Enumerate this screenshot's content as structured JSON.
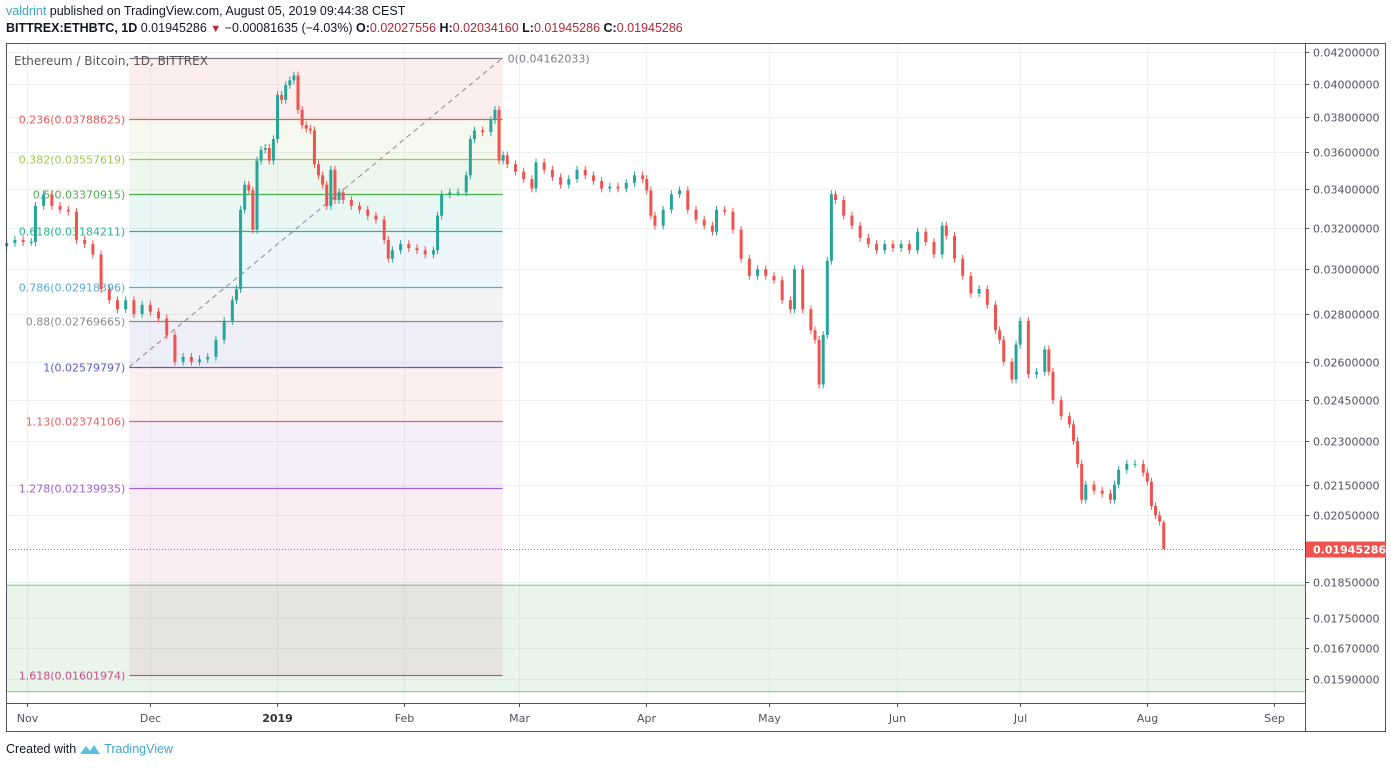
{
  "header": {
    "author": "valdrint",
    "published": "published on TradingView.com, August 05, 2019 09:44:38 CEST",
    "symbol": "BITTREX:ETHBTC, 1D",
    "last": "0.01945286",
    "change": "−0.00081635 (−4.03%)",
    "direction_icon": "triangle-down-icon",
    "o_label": "O:",
    "o": "0.02027556",
    "h_label": "H:",
    "h": "0.02034160",
    "l_label": "L:",
    "l": "0.01945286",
    "c_label": "C:",
    "c": "0.01945286"
  },
  "footer": {
    "created_with": "Created with",
    "brand": "TradingView",
    "logo_icon": "tradingview-logo-icon"
  },
  "colors": {
    "up": "#26a69a",
    "down": "#ef5350",
    "brand": "#3ea6c8",
    "last_price": "#ef5350",
    "zone": "#4caf50"
  },
  "chart_data": {
    "type": "candlestick",
    "title": "Ethereum / Bitcoin, 1D, BITTREX",
    "y_scale": "log",
    "ylim": [
      0.01535,
      0.0424
    ],
    "grid": true,
    "y_ticks": [
      "0.04200000",
      "0.04000000",
      "0.03800000",
      "0.03600000",
      "0.03400000",
      "0.03200000",
      "0.03000000",
      "0.02800000",
      "0.02600000",
      "0.02450000",
      "0.02300000",
      "0.02150000",
      "0.02050000",
      "0.01850000",
      "0.01750000",
      "0.01670000",
      "0.01590000"
    ],
    "x_ticks": [
      {
        "label": "Nov",
        "date": "2018-11-01"
      },
      {
        "label": "Dec",
        "date": "2018-12-01"
      },
      {
        "label": "2019",
        "date": "2019-01-01",
        "bold": true
      },
      {
        "label": "Feb",
        "date": "2019-02-01"
      },
      {
        "label": "Mar",
        "date": "2019-03-01"
      },
      {
        "label": "Apr",
        "date": "2019-04-01"
      },
      {
        "label": "May",
        "date": "2019-05-01"
      },
      {
        "label": "Jun",
        "date": "2019-06-01"
      },
      {
        "label": "Jul",
        "date": "2019-07-01"
      },
      {
        "label": "Aug",
        "date": "2019-08-01"
      },
      {
        "label": "Sep",
        "date": "2019-09-01"
      }
    ],
    "last_price": {
      "value": 0.01945286,
      "label": "0.01945286"
    },
    "last_candle": {
      "date": "2019-08-05",
      "open": 0.02027556,
      "high": 0.0203416,
      "low": 0.01945286,
      "close": 0.01945286
    },
    "closes": [
      [
        "2018-10-27",
        0.03125
      ],
      [
        "2018-10-29",
        0.0314
      ],
      [
        "2018-10-31",
        0.0313
      ],
      [
        "2018-11-02",
        0.0313
      ],
      [
        "2018-11-03",
        0.0331
      ],
      [
        "2018-11-05",
        0.0337
      ],
      [
        "2018-11-07",
        0.0331
      ],
      [
        "2018-11-09",
        0.0329
      ],
      [
        "2018-11-11",
        0.0328
      ],
      [
        "2018-11-13",
        0.0314
      ],
      [
        "2018-11-15",
        0.0312
      ],
      [
        "2018-11-17",
        0.0307
      ],
      [
        "2018-11-19",
        0.0291
      ],
      [
        "2018-11-21",
        0.0286
      ],
      [
        "2018-11-23",
        0.0282
      ],
      [
        "2018-11-25",
        0.0286
      ],
      [
        "2018-11-27",
        0.028
      ],
      [
        "2018-11-29",
        0.0284
      ],
      [
        "2018-12-01",
        0.0281
      ],
      [
        "2018-12-03",
        0.0278
      ],
      [
        "2018-12-05",
        0.0271
      ],
      [
        "2018-12-07",
        0.026
      ],
      [
        "2018-12-09",
        0.0262
      ],
      [
        "2018-12-11",
        0.026
      ],
      [
        "2018-12-13",
        0.0261
      ],
      [
        "2018-12-15",
        0.0262
      ],
      [
        "2018-12-17",
        0.0269
      ],
      [
        "2018-12-19",
        0.0277
      ],
      [
        "2018-12-21",
        0.0286
      ],
      [
        "2018-12-22",
        0.0291
      ],
      [
        "2018-12-23",
        0.0329
      ],
      [
        "2018-12-24",
        0.0342
      ],
      [
        "2018-12-25",
        0.0339
      ],
      [
        "2018-12-26",
        0.0319
      ],
      [
        "2018-12-27",
        0.0355
      ],
      [
        "2018-12-28",
        0.0361
      ],
      [
        "2018-12-29",
        0.0362
      ],
      [
        "2018-12-30",
        0.0355
      ],
      [
        "2018-12-31",
        0.0367
      ],
      [
        "2019-01-01",
        0.0393
      ],
      [
        "2019-01-02",
        0.039
      ],
      [
        "2019-01-03",
        0.0399
      ],
      [
        "2019-01-04",
        0.0402
      ],
      [
        "2019-01-05",
        0.0405
      ],
      [
        "2019-01-06",
        0.0384
      ],
      [
        "2019-01-07",
        0.0375
      ],
      [
        "2019-01-08",
        0.0373
      ],
      [
        "2019-01-09",
        0.0372
      ],
      [
        "2019-01-10",
        0.0353
      ],
      [
        "2019-01-11",
        0.0347
      ],
      [
        "2019-01-12",
        0.0342
      ],
      [
        "2019-01-13",
        0.0331
      ],
      [
        "2019-01-14",
        0.035
      ],
      [
        "2019-01-15",
        0.0334
      ],
      [
        "2019-01-16",
        0.0338
      ],
      [
        "2019-01-17",
        0.0334
      ],
      [
        "2019-01-19",
        0.0331
      ],
      [
        "2019-01-21",
        0.0329
      ],
      [
        "2019-01-23",
        0.0326
      ],
      [
        "2019-01-25",
        0.0324
      ],
      [
        "2019-01-27",
        0.0314
      ],
      [
        "2019-01-28",
        0.0305
      ],
      [
        "2019-01-29",
        0.0309
      ],
      [
        "2019-01-31",
        0.0312
      ],
      [
        "2019-02-02",
        0.031
      ],
      [
        "2019-02-04",
        0.0309
      ],
      [
        "2019-02-06",
        0.0307
      ],
      [
        "2019-02-08",
        0.0309
      ],
      [
        "2019-02-09",
        0.0326
      ],
      [
        "2019-02-10",
        0.0337
      ],
      [
        "2019-02-12",
        0.0338
      ],
      [
        "2019-02-14",
        0.0338
      ],
      [
        "2019-02-16",
        0.0347
      ],
      [
        "2019-02-17",
        0.0367
      ],
      [
        "2019-02-18",
        0.0372
      ],
      [
        "2019-02-20",
        0.0371
      ],
      [
        "2019-02-22",
        0.0378
      ],
      [
        "2019-02-23",
        0.0384
      ],
      [
        "2019-02-24",
        0.0355
      ],
      [
        "2019-02-25",
        0.0358
      ],
      [
        "2019-02-26",
        0.0353
      ],
      [
        "2019-02-28",
        0.0349
      ],
      [
        "2019-03-02",
        0.0345
      ],
      [
        "2019-03-04",
        0.034
      ],
      [
        "2019-03-05",
        0.0354
      ],
      [
        "2019-03-07",
        0.035
      ],
      [
        "2019-03-09",
        0.0346
      ],
      [
        "2019-03-11",
        0.0342
      ],
      [
        "2019-03-13",
        0.0345
      ],
      [
        "2019-03-15",
        0.035
      ],
      [
        "2019-03-17",
        0.0347
      ],
      [
        "2019-03-19",
        0.0344
      ],
      [
        "2019-03-21",
        0.034
      ],
      [
        "2019-03-23",
        0.0341
      ],
      [
        "2019-03-25",
        0.034
      ],
      [
        "2019-03-27",
        0.0343
      ],
      [
        "2019-03-29",
        0.0347
      ],
      [
        "2019-03-31",
        0.0345
      ],
      [
        "2019-04-01",
        0.0339
      ],
      [
        "2019-04-02",
        0.0326
      ],
      [
        "2019-04-03",
        0.0321
      ],
      [
        "2019-04-05",
        0.0329
      ],
      [
        "2019-04-07",
        0.0337
      ],
      [
        "2019-04-09",
        0.0339
      ],
      [
        "2019-04-11",
        0.0329
      ],
      [
        "2019-04-13",
        0.0324
      ],
      [
        "2019-04-15",
        0.0321
      ],
      [
        "2019-04-17",
        0.0318
      ],
      [
        "2019-04-18",
        0.0329
      ],
      [
        "2019-04-20",
        0.0328
      ],
      [
        "2019-04-22",
        0.0319
      ],
      [
        "2019-04-24",
        0.0305
      ],
      [
        "2019-04-26",
        0.0297
      ],
      [
        "2019-04-28",
        0.03
      ],
      [
        "2019-04-30",
        0.0297
      ],
      [
        "2019-05-02",
        0.0295
      ],
      [
        "2019-05-04",
        0.0286
      ],
      [
        "2019-05-06",
        0.0282
      ],
      [
        "2019-05-07",
        0.03
      ],
      [
        "2019-05-09",
        0.0282
      ],
      [
        "2019-05-11",
        0.0273
      ],
      [
        "2019-05-12",
        0.0269
      ],
      [
        "2019-05-13",
        0.0251
      ],
      [
        "2019-05-14",
        0.0271
      ],
      [
        "2019-05-15",
        0.0304
      ],
      [
        "2019-05-16",
        0.0337
      ],
      [
        "2019-05-17",
        0.0334
      ],
      [
        "2019-05-19",
        0.0326
      ],
      [
        "2019-05-21",
        0.0321
      ],
      [
        "2019-05-23",
        0.0315
      ],
      [
        "2019-05-25",
        0.0312
      ],
      [
        "2019-05-27",
        0.0309
      ],
      [
        "2019-05-29",
        0.0312
      ],
      [
        "2019-05-31",
        0.031
      ],
      [
        "2019-06-02",
        0.0312
      ],
      [
        "2019-06-04",
        0.0309
      ],
      [
        "2019-06-06",
        0.0318
      ],
      [
        "2019-06-08",
        0.0313
      ],
      [
        "2019-06-10",
        0.0307
      ],
      [
        "2019-06-12",
        0.0321
      ],
      [
        "2019-06-13",
        0.0316
      ],
      [
        "2019-06-15",
        0.0305
      ],
      [
        "2019-06-17",
        0.0297
      ],
      [
        "2019-06-19",
        0.0289
      ],
      [
        "2019-06-21",
        0.0291
      ],
      [
        "2019-06-23",
        0.0284
      ],
      [
        "2019-06-25",
        0.0273
      ],
      [
        "2019-06-26",
        0.0269
      ],
      [
        "2019-06-27",
        0.026
      ],
      [
        "2019-06-29",
        0.0253
      ],
      [
        "2019-06-30",
        0.0267
      ],
      [
        "2019-07-01",
        0.0277
      ],
      [
        "2019-07-03",
        0.0255
      ],
      [
        "2019-07-05",
        0.0256
      ],
      [
        "2019-07-07",
        0.0265
      ],
      [
        "2019-07-08",
        0.0256
      ],
      [
        "2019-07-09",
        0.0245
      ],
      [
        "2019-07-11",
        0.0239
      ],
      [
        "2019-07-13",
        0.0236
      ],
      [
        "2019-07-14",
        0.023
      ],
      [
        "2019-07-15",
        0.0222
      ],
      [
        "2019-07-16",
        0.021
      ],
      [
        "2019-07-17",
        0.0215
      ],
      [
        "2019-07-19",
        0.0213
      ],
      [
        "2019-07-21",
        0.0212
      ],
      [
        "2019-07-23",
        0.021
      ],
      [
        "2019-07-24",
        0.0215
      ],
      [
        "2019-07-25",
        0.022
      ],
      [
        "2019-07-27",
        0.0222
      ],
      [
        "2019-07-29",
        0.0222
      ],
      [
        "2019-07-31",
        0.0219
      ],
      [
        "2019-08-01",
        0.0216
      ],
      [
        "2019-08-02",
        0.0208
      ],
      [
        "2019-08-03",
        0.0205
      ],
      [
        "2019-08-04",
        0.0203
      ]
    ],
    "fibonacci": {
      "start_date": "2018-11-26",
      "end_date": "2019-02-25",
      "levels": [
        {
          "ratio": "0",
          "price": 0.04162033,
          "label": "0(0.04162033)",
          "color": "#787b86"
        },
        {
          "ratio": "0.236",
          "price": 0.03788625,
          "label": "0.236(0.03788625)",
          "color": "#e05c5c"
        },
        {
          "ratio": "0.382",
          "price": 0.03557619,
          "label": "0.382(0.03557619)",
          "color": "#a5c45a"
        },
        {
          "ratio": "0.5",
          "price": 0.03370915,
          "label": "0.5(0.03370915)",
          "color": "#4caf50"
        },
        {
          "ratio": "0.618",
          "price": 0.03184211,
          "label": "0.618(0.03184211)",
          "color": "#2bb38f"
        },
        {
          "ratio": "0.786",
          "price": 0.02918396,
          "label": "0.786(0.02918396)",
          "color": "#5aa9d6"
        },
        {
          "ratio": "0.88",
          "price": 0.02769665,
          "label": "0.88(0.02769665)",
          "color": "#8c8c8c"
        },
        {
          "ratio": "1",
          "price": 0.02579797,
          "label": "1(0.02579797)",
          "color": "#5c5cc8"
        },
        {
          "ratio": "1.13",
          "price": 0.02374106,
          "label": "1.13(0.02374106)",
          "color": "#e06666"
        },
        {
          "ratio": "1.278",
          "price": 0.02139935,
          "label": "1.278(0.02139935)",
          "color": "#a560d0"
        },
        {
          "ratio": "1.618",
          "price": 0.01601974,
          "label": "1.618(0.01601974)",
          "color": "#c4508c"
        }
      ]
    },
    "support_zone": {
      "top": 0.0184,
      "bottom": 0.0156,
      "color": "#4caf50"
    }
  }
}
